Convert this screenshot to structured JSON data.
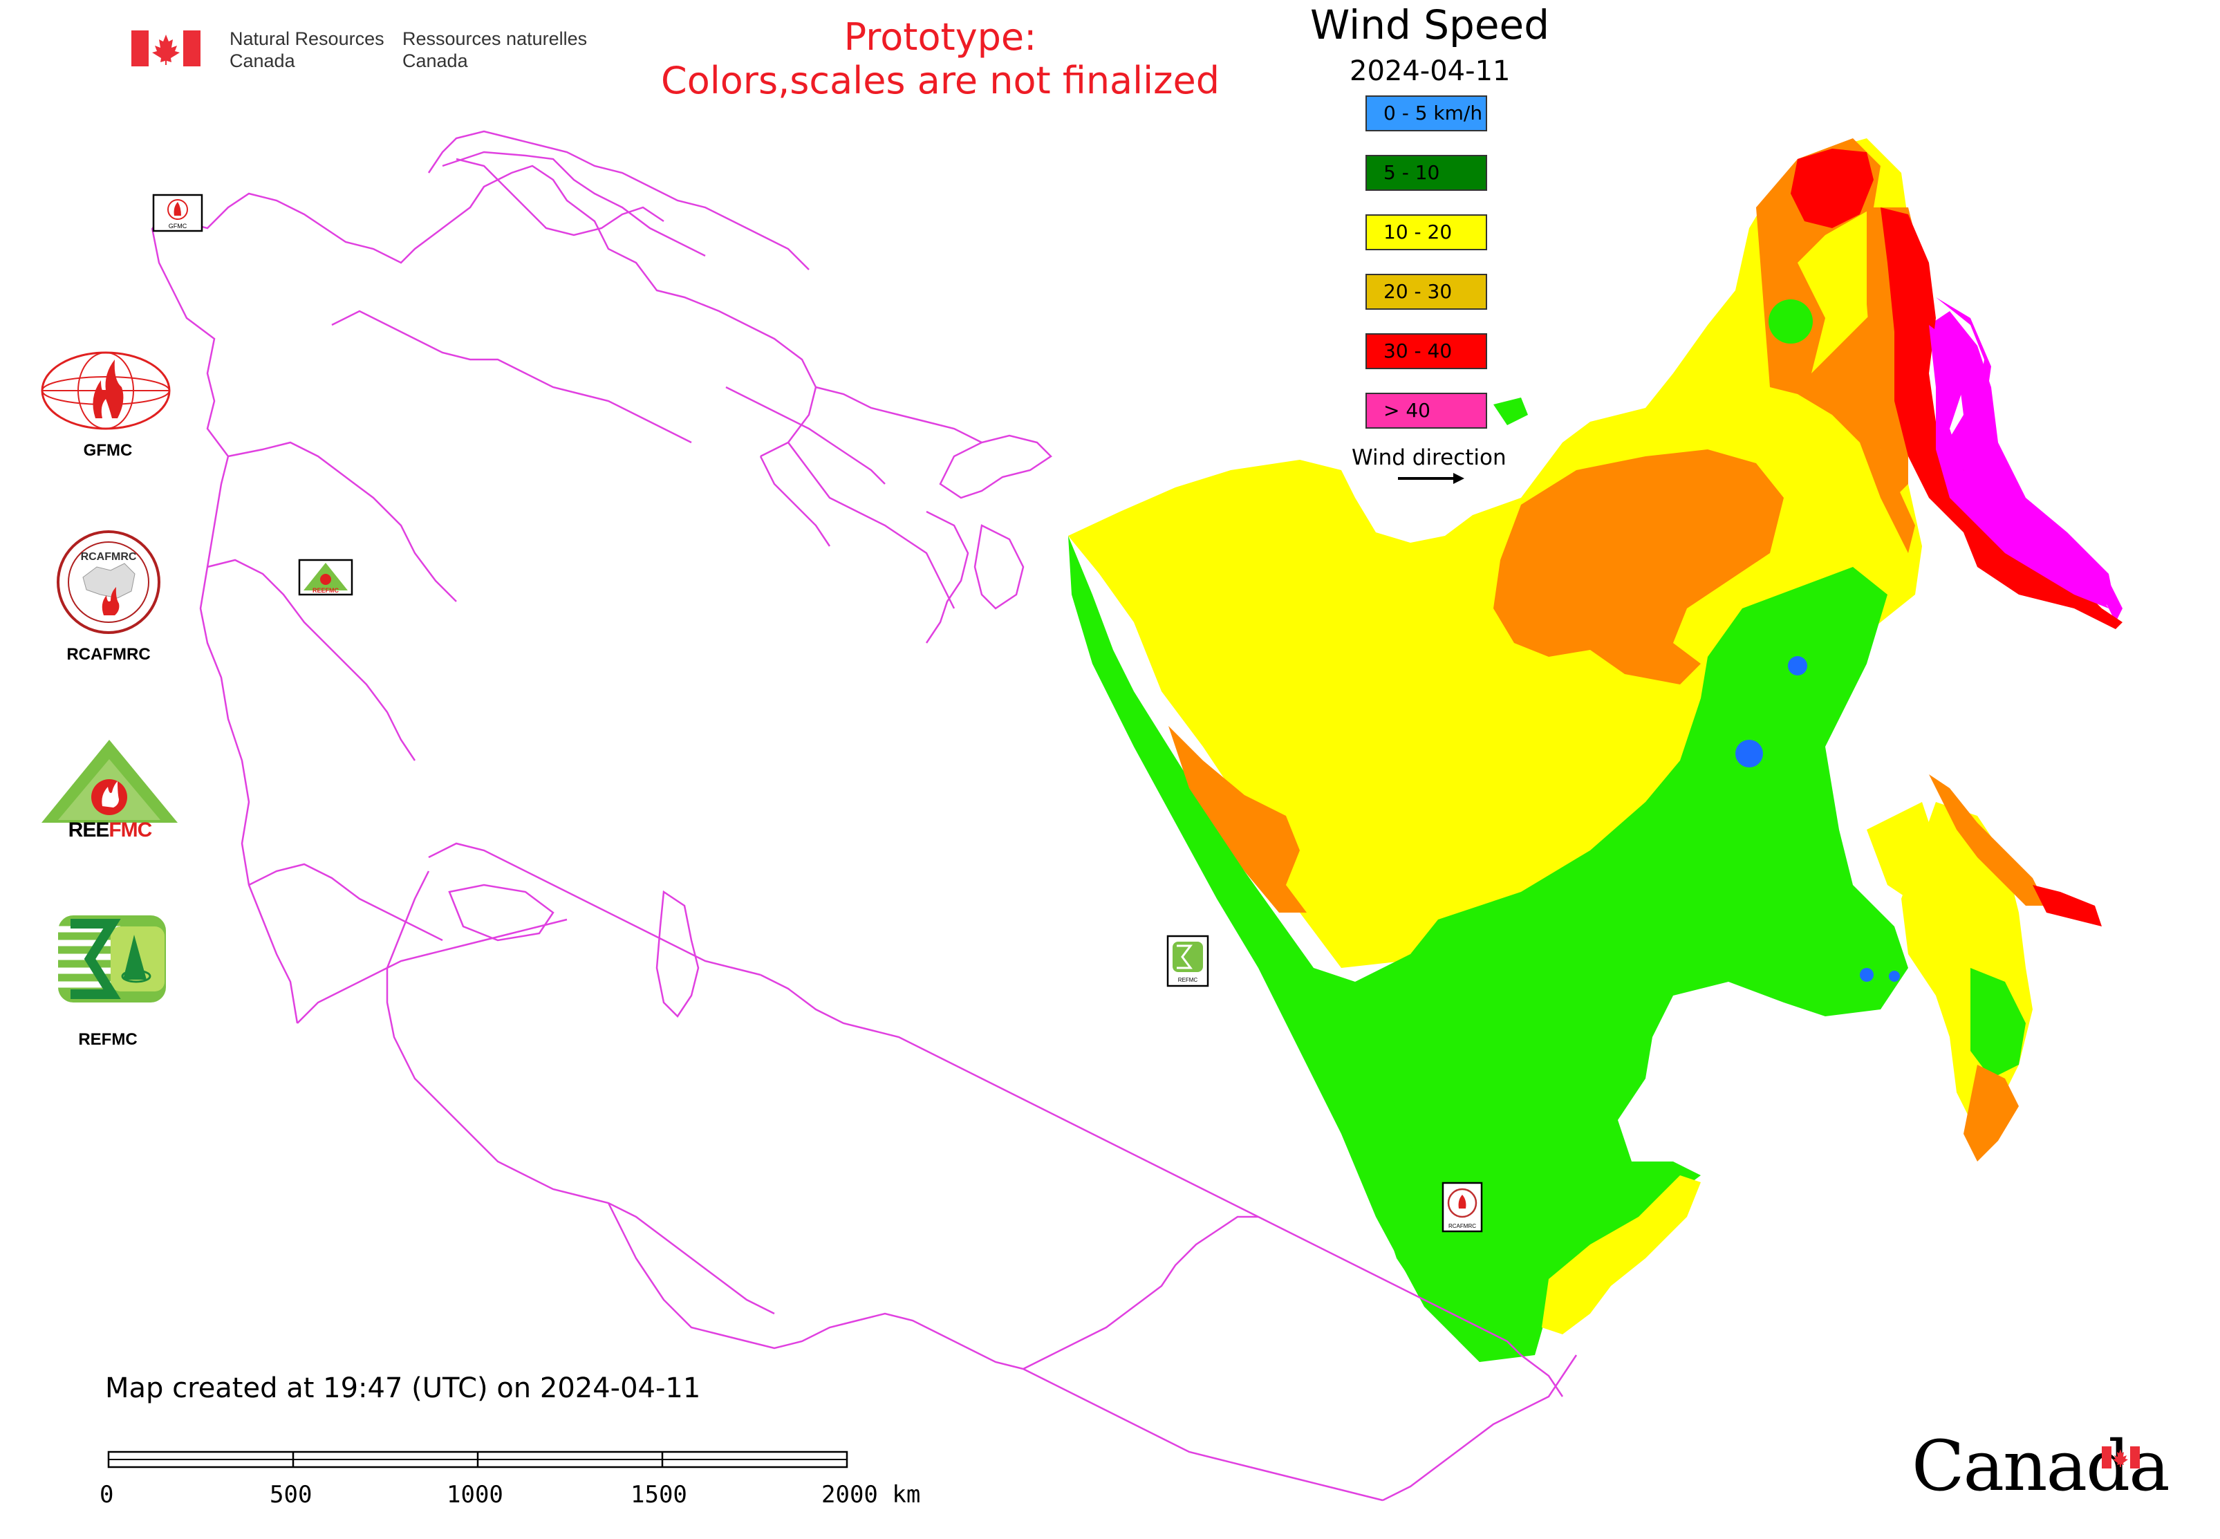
{
  "header": {
    "agency_en_line1": "Natural Resources",
    "agency_en_line2": "Canada",
    "agency_fr_line1": "Ressources naturelles",
    "agency_fr_line2": "Canada",
    "prototype_line1": "Prototype:",
    "prototype_line2": "Colors,scales are not finalized"
  },
  "map_title": "Wind Speed",
  "map_date": "2024-04-11",
  "legend": {
    "items": [
      {
        "label": "0 - 5 km/h",
        "color": "#3399ff"
      },
      {
        "label": "5 - 10",
        "color": "#008000"
      },
      {
        "label": "10 - 20",
        "color": "#ffff00"
      },
      {
        "label": "20 - 30",
        "color": "#e6bf00"
      },
      {
        "label": "30 - 40",
        "color": "#ff0000"
      },
      {
        "label": "> 40",
        "color": "#ff33aa"
      }
    ],
    "wind_direction_label": "Wind direction"
  },
  "side_logos": [
    {
      "label": "GFMC",
      "icon": "gfmc-logo-icon"
    },
    {
      "label": "RCAFMRC",
      "icon": "rcafmrc-logo-icon"
    },
    {
      "label": "",
      "icon": "reefmc-logo-icon",
      "logo_text": "REEFMC"
    },
    {
      "label": "REFMC",
      "icon": "refmc-logo-icon"
    }
  ],
  "map_colors": {
    "boundary": "#e040e0",
    "green": "#22ee00",
    "yellow": "#ffff00",
    "orange": "#ff8800",
    "red": "#ff0000",
    "magenta": "#ff00ff",
    "blue": "#1e6bff"
  },
  "footer": {
    "created_text": "Map created at 19:47 (UTC) on 2024-04-11",
    "scale_labels": [
      "0",
      "500",
      "1000",
      "1500",
      "2000 km"
    ],
    "wordmark": "Canada"
  }
}
